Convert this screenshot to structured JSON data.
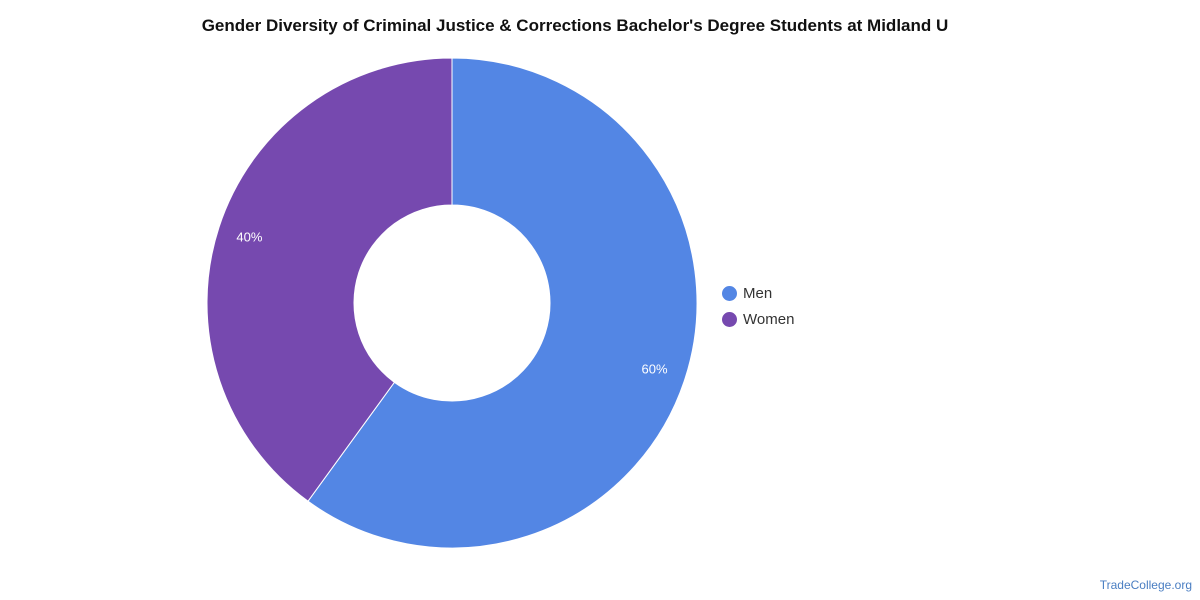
{
  "chart_data": {
    "type": "pie",
    "title": "Gender Diversity of Criminal Justice & Corrections Bachelor's Degree Students at Midland U",
    "donut": true,
    "categories": [
      "Men",
      "Women"
    ],
    "values": [
      60,
      40
    ],
    "data_labels": [
      "60%",
      "40%"
    ],
    "colors": [
      "#5386e4",
      "#7649af"
    ],
    "legend_position": "right"
  },
  "footer": {
    "source": "TradeCollege.org"
  }
}
